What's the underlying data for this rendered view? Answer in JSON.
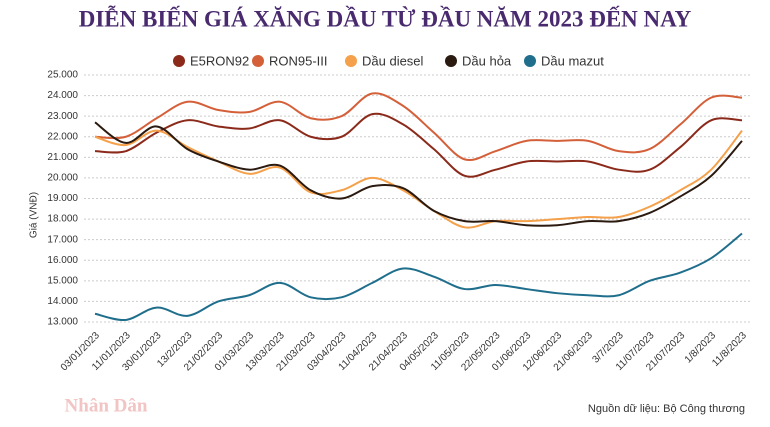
{
  "chart_data": {
    "type": "line",
    "title": "DIỄN BIẾN GIÁ XĂNG DẦU TỪ ĐẦU NĂM 2023 ĐẾN NAY",
    "y_label": "Giá (VNĐ)",
    "source": "Nguồn dữ liệu: Bộ Công thương",
    "watermark": "Nhân Dân",
    "categories": [
      "03/01/2023",
      "11/01/2023",
      "30/01/2023",
      "13/2/2023",
      "21/02/2023",
      "01/03/2023",
      "13/03/2023",
      "21/03/2023",
      "03/04/2023",
      "11/04/2023",
      "21/04/2023",
      "04/05/2023",
      "11/05/2023",
      "22/05/2023",
      "01/06/2023",
      "12/06/2023",
      "21/06/2023",
      "3/7/2023",
      "11/07/2023",
      "21/07/2023",
      "1/8/2023",
      "11/8/2023"
    ],
    "series": [
      {
        "name": "E5RON92",
        "color": "#8b2a1a",
        "values": [
          21300,
          21300,
          22200,
          22800,
          22500,
          22400,
          22800,
          22000,
          22000,
          23100,
          22600,
          21400,
          20100,
          20400,
          20800,
          20800,
          20800,
          20400,
          20400,
          21500,
          22800,
          22800
        ]
      },
      {
        "name": "RON95-III",
        "color": "#d4603a",
        "values": [
          22000,
          22000,
          22900,
          23700,
          23300,
          23200,
          23700,
          22900,
          23000,
          24100,
          23500,
          22200,
          20900,
          21300,
          21800,
          21800,
          21800,
          21300,
          21400,
          22600,
          23900,
          23900
        ]
      },
      {
        "name": "Dầu diesel",
        "color": "#f5a04a",
        "values": [
          22000,
          21600,
          22300,
          21500,
          20800,
          20200,
          20500,
          19300,
          19400,
          20000,
          19400,
          18400,
          17600,
          17900,
          17900,
          18000,
          18100,
          18100,
          18600,
          19400,
          20400,
          22300
        ]
      },
      {
        "name": "Dầu hỏa",
        "color": "#2b1a10",
        "values": [
          22700,
          21700,
          22500,
          21400,
          20800,
          20400,
          20600,
          19400,
          19000,
          19600,
          19500,
          18400,
          17900,
          17900,
          17700,
          17700,
          17900,
          17900,
          18300,
          19100,
          20100,
          21800
        ]
      },
      {
        "name": "Dầu mazut",
        "color": "#1f6e8c",
        "values": [
          13400,
          13100,
          13700,
          13300,
          14000,
          14300,
          14900,
          14200,
          14200,
          14900,
          15600,
          15200,
          14600,
          14800,
          14600,
          14400,
          14300,
          14300,
          15000,
          15400,
          16100,
          17300
        ]
      }
    ],
    "ylim": [
      13000,
      25000
    ],
    "yticks": [
      {
        "value": 13000,
        "label": "13.000"
      },
      {
        "value": 14000,
        "label": "14.000"
      },
      {
        "value": 15000,
        "label": "15.000"
      },
      {
        "value": 16000,
        "label": "16.000"
      },
      {
        "value": 17000,
        "label": "17.000"
      },
      {
        "value": 18000,
        "label": "18.000"
      },
      {
        "value": 19000,
        "label": "19.000"
      },
      {
        "value": 20000,
        "label": "20.000"
      },
      {
        "value": 21000,
        "label": "21.000"
      },
      {
        "value": 22000,
        "label": "22.000"
      },
      {
        "value": 23000,
        "label": "23.000"
      },
      {
        "value": 24000,
        "label": "24.000"
      },
      {
        "value": 25000,
        "label": "25.000"
      }
    ],
    "grid": true
  }
}
